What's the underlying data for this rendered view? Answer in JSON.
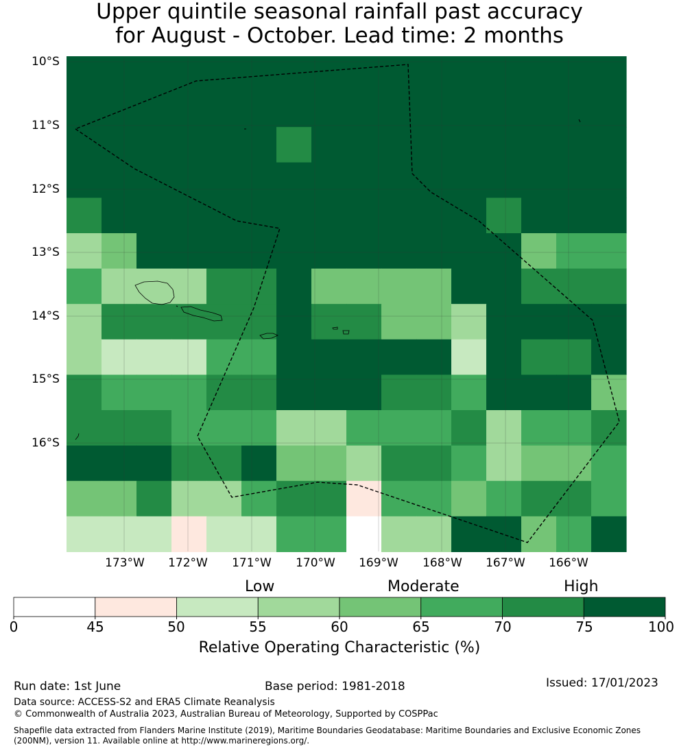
{
  "title": {
    "line1": "Upper quintile seasonal rainfall past accuracy",
    "line2": "for August - October. Lead time: 2 months"
  },
  "map": {
    "lat_labels": [
      "10°S",
      "11°S",
      "12°S",
      "13°S",
      "14°S",
      "15°S",
      "16°S"
    ],
    "lon_labels": [
      "173°W",
      "172°W",
      "171°W",
      "170°W",
      "169°W",
      "168°W",
      "167°W",
      "166°W"
    ],
    "grid_rows": [
      [
        7,
        7,
        7,
        7,
        7,
        7,
        7,
        7,
        7,
        7,
        7,
        7,
        7,
        7,
        7,
        7
      ],
      [
        7,
        7,
        7,
        7,
        7,
        7,
        7,
        7,
        7,
        7,
        7,
        7,
        7,
        7,
        7,
        7
      ],
      [
        7,
        7,
        7,
        7,
        7,
        7,
        6,
        7,
        7,
        7,
        7,
        7,
        7,
        7,
        7,
        7
      ],
      [
        7,
        7,
        7,
        7,
        7,
        7,
        7,
        7,
        7,
        7,
        7,
        7,
        7,
        7,
        7,
        7
      ],
      [
        6,
        7,
        7,
        7,
        7,
        7,
        7,
        7,
        7,
        7,
        7,
        7,
        6,
        7,
        7,
        7
      ],
      [
        3,
        4,
        7,
        7,
        7,
        7,
        7,
        7,
        7,
        7,
        7,
        7,
        7,
        4,
        5,
        5
      ],
      [
        5,
        3,
        3,
        3,
        6,
        6,
        7,
        4,
        4,
        4,
        4,
        7,
        7,
        6,
        6,
        6
      ],
      [
        3,
        6,
        6,
        6,
        6,
        6,
        7,
        6,
        6,
        4,
        4,
        3,
        7,
        7,
        7,
        7
      ],
      [
        3,
        2,
        2,
        2,
        5,
        5,
        7,
        7,
        7,
        7,
        7,
        2,
        7,
        6,
        6,
        7
      ],
      [
        6,
        5,
        5,
        5,
        6,
        6,
        7,
        7,
        7,
        6,
        6,
        5,
        7,
        7,
        7,
        4
      ],
      [
        6,
        6,
        6,
        5,
        5,
        5,
        3,
        3,
        5,
        5,
        5,
        6,
        3,
        5,
        5,
        6
      ],
      [
        7,
        7,
        7,
        6,
        6,
        7,
        4,
        4,
        3,
        6,
        6,
        5,
        3,
        4,
        4,
        5
      ],
      [
        4,
        4,
        6,
        3,
        3,
        5,
        6,
        6,
        1,
        5,
        5,
        4,
        5,
        6,
        6,
        5
      ],
      [
        2,
        2,
        2,
        1,
        2,
        2,
        5,
        5,
        0,
        3,
        3,
        7,
        7,
        4,
        5,
        7
      ]
    ],
    "colors": [
      "#ffffff",
      "#fee8df",
      "#c7e9c0",
      "#a1d99b",
      "#74c476",
      "#41ab5d",
      "#238b45",
      "#005a32"
    ]
  },
  "colorbar": {
    "categories": [
      "Low",
      "Moderate",
      "High"
    ],
    "ticks": [
      "0",
      "45",
      "50",
      "55",
      "60",
      "65",
      "70",
      "75",
      "100"
    ],
    "title": "Relative Operating Characteristic (%)"
  },
  "footer": {
    "run_date": "Run date: 1st June",
    "base_period": "Base period: 1981-2018",
    "issued": "Issued: 17/01/2023",
    "data_source": "Data source: ACCESS-S2 and ERA5 Climate Reanalysis",
    "copyright": "© Commonwealth of Australia 2023, Australian Bureau of Meteorology, Supported by COSPPac",
    "shapefile": "Shapefile data extracted from Flanders Marine Institute (2019), Maritime Boundaries Geodatabase: Maritime Boundaries and Exclusive Economic Zones (200NM), version 11. Available online at http://www.marineregions.org/."
  }
}
